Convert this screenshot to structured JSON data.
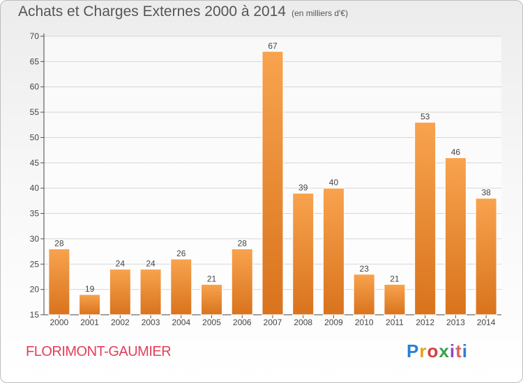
{
  "header": {
    "title": "Achats et Charges Externes 2000 à 2014",
    "subtitle": "(en milliers d'€)"
  },
  "footer": {
    "commune": "FLORIMONT-GAUMIER",
    "brand": "Proxiti",
    "brand_colors": [
      "#2a7fd4",
      "#e8a020",
      "#d04040",
      "#3aa048",
      "#8a4ac8",
      "#e06060",
      "#2a7fd4"
    ]
  },
  "chart_data": {
    "type": "bar",
    "categories": [
      "2000",
      "2001",
      "2002",
      "2003",
      "2004",
      "2005",
      "2006",
      "2007",
      "2008",
      "2009",
      "2010",
      "2011",
      "2012",
      "2013",
      "2014"
    ],
    "values": [
      28,
      19,
      24,
      24,
      26,
      21,
      28,
      67,
      39,
      40,
      23,
      21,
      53,
      46,
      38
    ],
    "ylim": [
      15,
      70
    ],
    "yticks": [
      15,
      20,
      25,
      30,
      35,
      40,
      45,
      50,
      55,
      60,
      65,
      70
    ],
    "grid": true,
    "bar_color_light": "#f8a34e",
    "bar_color_dark": "#d9731d"
  }
}
